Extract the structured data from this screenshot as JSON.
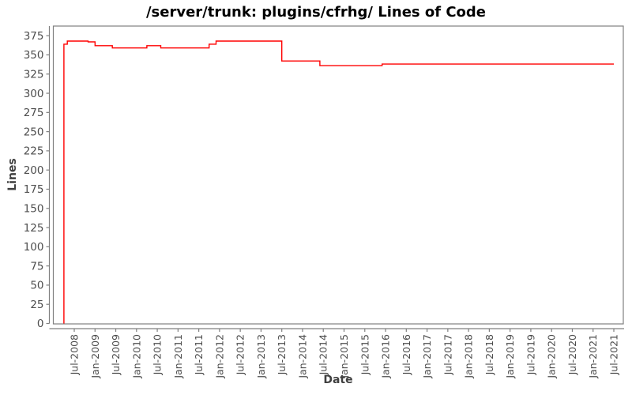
{
  "title": "/server/trunk: plugins/cfrhg/ Lines of Code",
  "chart_data": {
    "type": "line",
    "subtype": "step-post",
    "title": "/server/trunk: plugins/cfrhg/ Lines of Code",
    "xlabel": "Date",
    "ylabel": "Lines",
    "grid": false,
    "legend_position": "none",
    "line_color": "#ff0000",
    "axis_color": "#808080",
    "tick_label_color": "#4d4d4d",
    "axis_label_color": "#404040",
    "ylim": [
      0,
      387.5
    ],
    "y_ticks": [
      0,
      25,
      50,
      75,
      100,
      125,
      150,
      175,
      200,
      225,
      250,
      275,
      300,
      325,
      350,
      375
    ],
    "x_tick_labels": [
      "Jul-2008",
      "Jan-2009",
      "Jul-2009",
      "Jan-2010",
      "Jul-2010",
      "Jan-2011",
      "Jul-2011",
      "Jan-2012",
      "Jul-2012",
      "Jan-2013",
      "Jul-2013",
      "Jan-2014",
      "Jul-2014",
      "Jan-2015",
      "Jul-2015",
      "Jan-2016",
      "Jul-2016",
      "Jan-2017",
      "Jul-2017",
      "Jan-2018",
      "Jul-2018",
      "Jan-2019",
      "Jul-2019",
      "Jan-2020",
      "Jul-2020",
      "Jan-2021",
      "Jul-2021"
    ],
    "series": [
      {
        "name": "Lines of Code",
        "points": [
          {
            "date": "2008-04",
            "value": 0
          },
          {
            "date": "2008-04",
            "value": 364
          },
          {
            "date": "2008-05",
            "value": 368
          },
          {
            "date": "2008-11",
            "value": 367
          },
          {
            "date": "2009-01",
            "value": 362
          },
          {
            "date": "2009-06",
            "value": 359
          },
          {
            "date": "2010-04",
            "value": 362
          },
          {
            "date": "2010-08",
            "value": 359
          },
          {
            "date": "2011-10",
            "value": 364
          },
          {
            "date": "2011-12",
            "value": 368
          },
          {
            "date": "2013-07",
            "value": 342
          },
          {
            "date": "2014-06",
            "value": 336
          },
          {
            "date": "2015-12",
            "value": 338
          },
          {
            "date": "2021-07",
            "value": 338
          }
        ]
      }
    ]
  }
}
